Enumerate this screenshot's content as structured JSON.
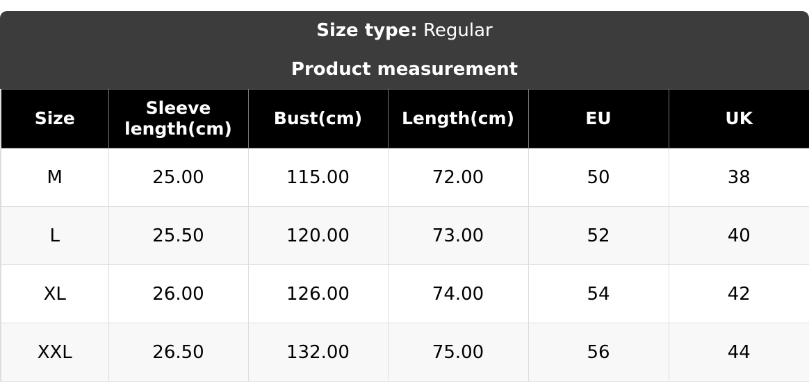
{
  "size_type_label": "Size type:",
  "size_type_value": "Regular",
  "title": "Product measurement",
  "headers": [
    "Size",
    "Sleeve length(cm)",
    "Bust(cm)",
    "Length(cm)",
    "EU",
    "UK"
  ],
  "rows": [
    [
      "M",
      "25.00",
      "115.00",
      "72.00",
      "50",
      "38"
    ],
    [
      "L",
      "25.50",
      "120.00",
      "73.00",
      "52",
      "40"
    ],
    [
      "XL",
      "26.00",
      "126.00",
      "74.00",
      "54",
      "42"
    ],
    [
      "XXL",
      "26.50",
      "132.00",
      "75.00",
      "56",
      "44"
    ]
  ]
}
